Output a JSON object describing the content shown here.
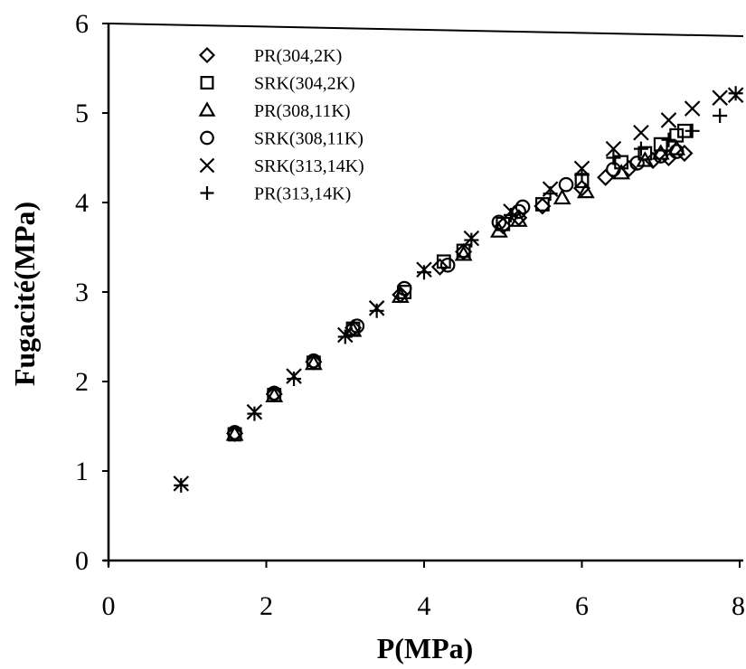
{
  "chart_data": {
    "type": "scatter",
    "xlabel": "P(MPa)",
    "ylabel": "Fugacité(MPa)",
    "xlim": [
      0,
      8
    ],
    "ylim": [
      0,
      6
    ],
    "xticks": [
      "0",
      "2",
      "4",
      "6",
      "8"
    ],
    "yticks": [
      "0",
      "1",
      "2",
      "3",
      "4",
      "5",
      "6"
    ],
    "grid": false,
    "legend_position": "top-left",
    "series": [
      {
        "name": "PR(304,2K)",
        "marker": "diamond",
        "points": [
          [
            1.6,
            1.42
          ],
          [
            2.1,
            1.86
          ],
          [
            2.6,
            2.22
          ],
          [
            3.1,
            2.6
          ],
          [
            3.7,
            2.97
          ],
          [
            4.2,
            3.28
          ],
          [
            4.5,
            3.45
          ],
          [
            5.0,
            3.74
          ],
          [
            5.2,
            3.83
          ],
          [
            5.5,
            3.96
          ],
          [
            6.0,
            4.16
          ],
          [
            6.3,
            4.28
          ],
          [
            6.6,
            4.38
          ],
          [
            6.9,
            4.47
          ],
          [
            7.1,
            4.5
          ],
          [
            7.3,
            4.55
          ]
        ]
      },
      {
        "name": "SRK(304,2K)",
        "marker": "square",
        "points": [
          [
            1.6,
            1.41
          ],
          [
            2.1,
            1.85
          ],
          [
            2.6,
            2.21
          ],
          [
            3.1,
            2.59
          ],
          [
            3.75,
            3.0
          ],
          [
            4.25,
            3.34
          ],
          [
            4.5,
            3.46
          ],
          [
            5.0,
            3.76
          ],
          [
            5.5,
            3.98
          ],
          [
            6.0,
            4.24
          ],
          [
            6.5,
            4.45
          ],
          [
            6.8,
            4.55
          ],
          [
            7.0,
            4.65
          ],
          [
            7.2,
            4.75
          ],
          [
            7.3,
            4.8
          ]
        ]
      },
      {
        "name": "PR(308,11K)",
        "marker": "triangle",
        "points": [
          [
            1.6,
            1.41
          ],
          [
            2.1,
            1.84
          ],
          [
            2.6,
            2.2
          ],
          [
            3.1,
            2.57
          ],
          [
            3.7,
            2.95
          ],
          [
            4.5,
            3.42
          ],
          [
            4.95,
            3.68
          ],
          [
            5.2,
            3.8
          ],
          [
            5.75,
            4.05
          ],
          [
            6.05,
            4.12
          ],
          [
            6.5,
            4.33
          ],
          [
            6.8,
            4.47
          ],
          [
            7.0,
            4.55
          ],
          [
            7.2,
            4.6
          ]
        ]
      },
      {
        "name": "SRK(308,11K)",
        "marker": "circle",
        "points": [
          [
            1.6,
            1.43
          ],
          [
            2.1,
            1.87
          ],
          [
            2.6,
            2.23
          ],
          [
            3.15,
            2.62
          ],
          [
            3.75,
            3.04
          ],
          [
            4.3,
            3.3
          ],
          [
            4.95,
            3.78
          ],
          [
            5.2,
            3.9
          ],
          [
            5.25,
            3.95
          ],
          [
            5.8,
            4.2
          ],
          [
            6.4,
            4.37
          ],
          [
            6.7,
            4.44
          ],
          [
            7.0,
            4.52
          ],
          [
            7.2,
            4.57
          ]
        ]
      },
      {
        "name": "SRK(313,14K)",
        "marker": "cross",
        "points": [
          [
            0.92,
            0.86
          ],
          [
            1.85,
            1.66
          ],
          [
            2.35,
            2.06
          ],
          [
            3.0,
            2.52
          ],
          [
            3.4,
            2.82
          ],
          [
            4.0,
            3.25
          ],
          [
            4.6,
            3.6
          ],
          [
            5.1,
            3.9
          ],
          [
            5.6,
            4.15
          ],
          [
            6.0,
            4.38
          ],
          [
            6.4,
            4.6
          ],
          [
            6.75,
            4.78
          ],
          [
            7.1,
            4.92
          ],
          [
            7.4,
            5.05
          ],
          [
            7.75,
            5.17
          ],
          [
            7.95,
            5.2
          ]
        ]
      },
      {
        "name": "PR(313,14K)",
        "marker": "plus",
        "points": [
          [
            0.92,
            0.84
          ],
          [
            1.85,
            1.64
          ],
          [
            2.35,
            2.03
          ],
          [
            3.0,
            2.5
          ],
          [
            3.4,
            2.79
          ],
          [
            4.0,
            3.22
          ],
          [
            4.6,
            3.58
          ],
          [
            5.1,
            3.86
          ],
          [
            5.6,
            4.1
          ],
          [
            6.0,
            4.32
          ],
          [
            6.4,
            4.5
          ],
          [
            6.75,
            4.6
          ],
          [
            7.1,
            4.7
          ],
          [
            7.4,
            4.8
          ],
          [
            7.75,
            4.97
          ],
          [
            7.95,
            5.22
          ]
        ]
      }
    ]
  }
}
